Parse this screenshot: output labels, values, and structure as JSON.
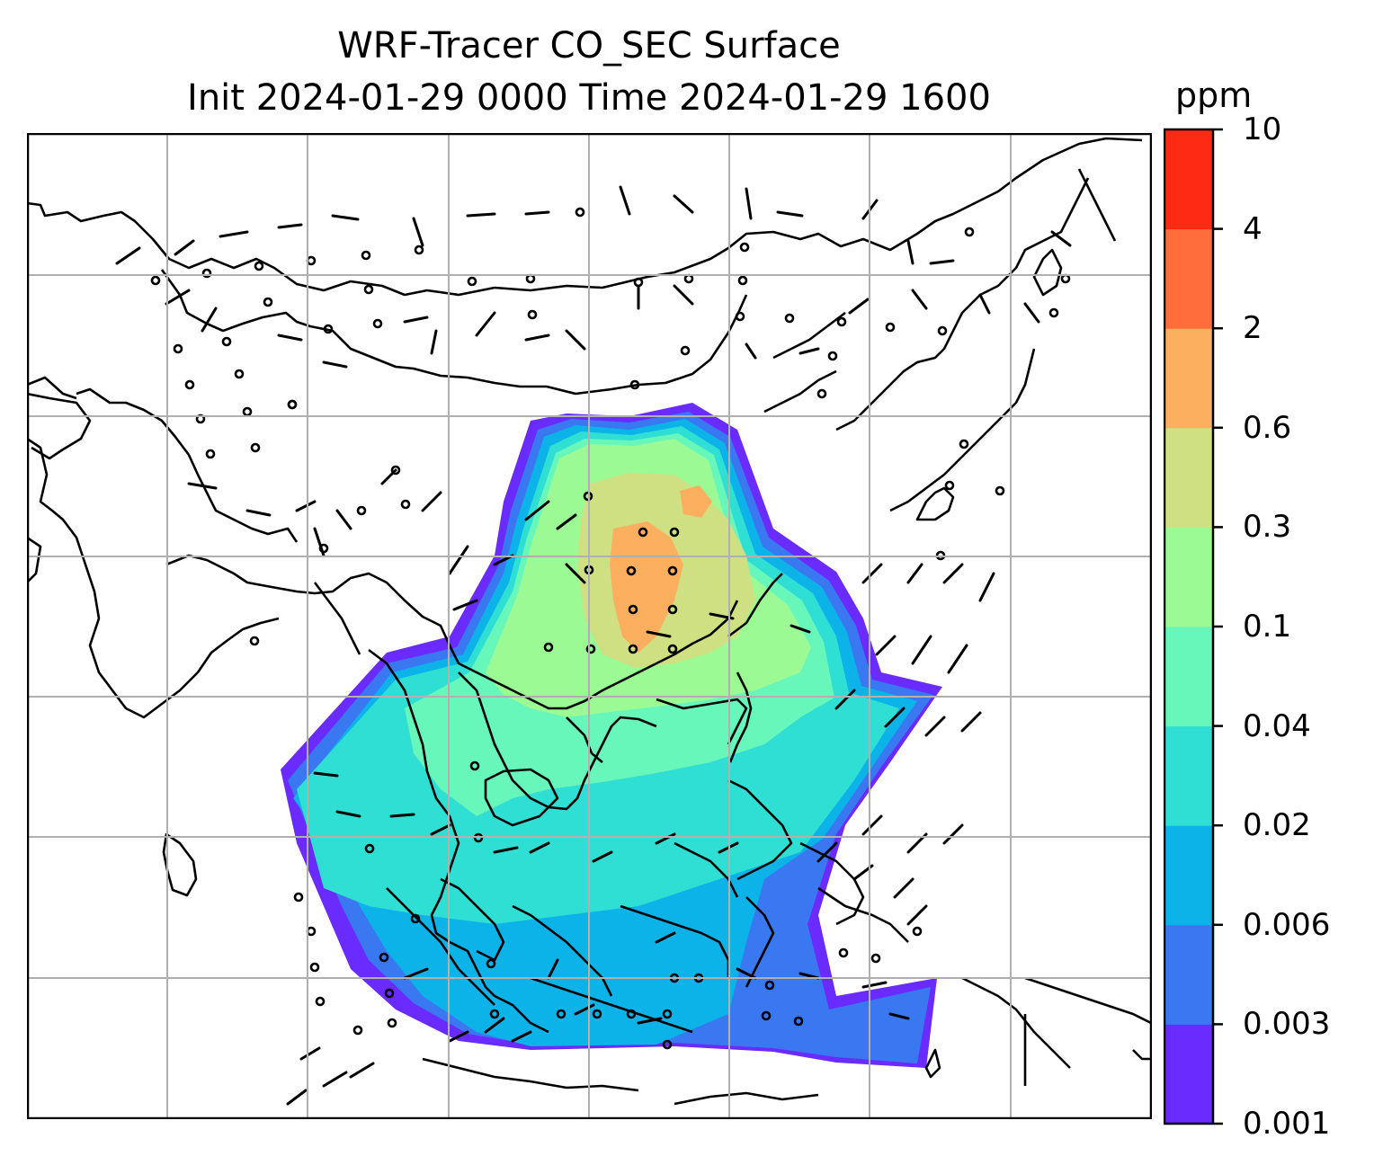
{
  "title": {
    "line1": "WRF-Tracer CO_SEC Surface",
    "line2": "Init 2024-01-29 0000 Time 2024-01-29 1600"
  },
  "colorbar": {
    "unit": "ppm",
    "levels": [
      "0.001",
      "0.003",
      "0.006",
      "0.02",
      "0.04",
      "0.1",
      "0.3",
      "0.6",
      "2",
      "4",
      "10"
    ],
    "colors": [
      "#6a2bff",
      "#3a78f2",
      "#0bb3e8",
      "#2fdfd3",
      "#68f7bb",
      "#9bfa93",
      "#cfe083",
      "#fdaf60",
      "#ff6e3a",
      "#ff2a14"
    ]
  },
  "map": {
    "gridlines": "on",
    "background": "#ffffff",
    "coastline_color": "#000000"
  }
}
